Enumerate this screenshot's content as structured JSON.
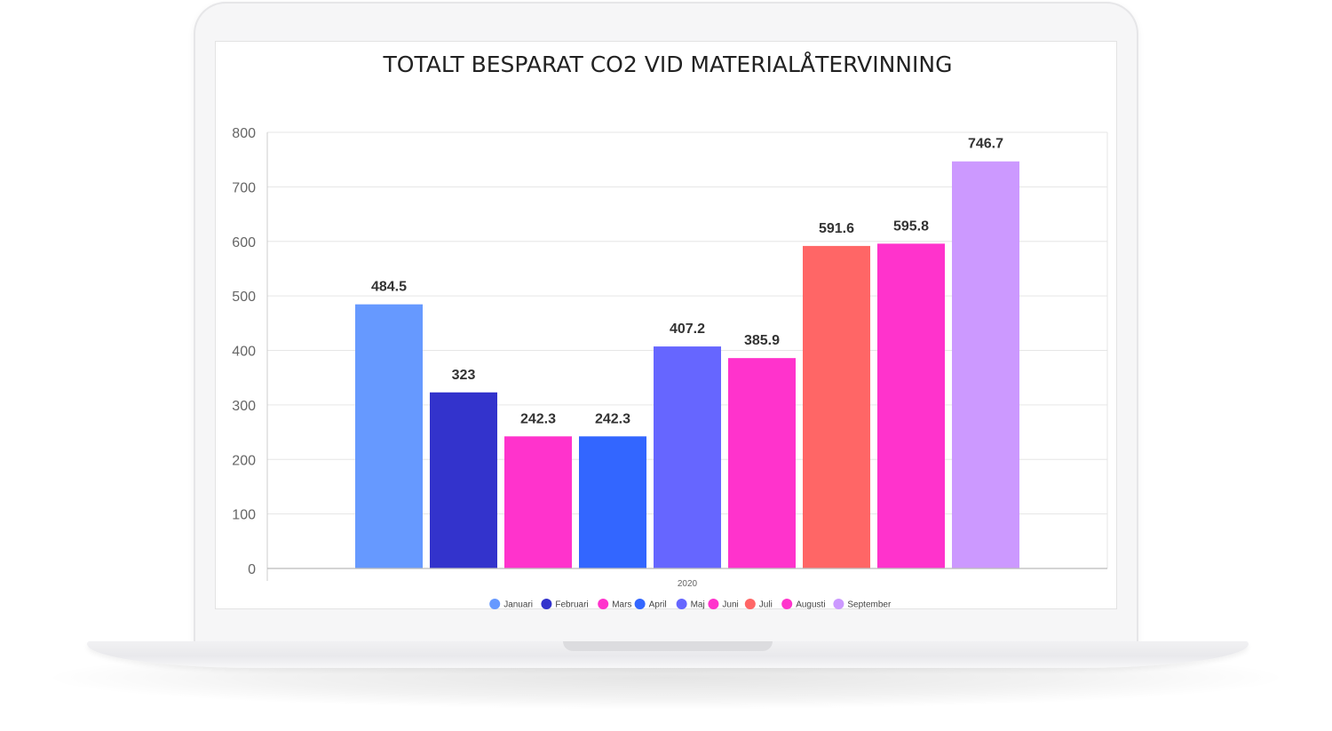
{
  "chart_data": {
    "type": "bar",
    "title": "TOTALT BESPARAT CO2 VID MATERIALÅTERVINNING",
    "categories": [
      "2020"
    ],
    "series": [
      {
        "name": "Januari",
        "value": 484.5,
        "label": "484.5",
        "color": "#6699ff"
      },
      {
        "name": "Februari",
        "value": 323,
        "label": "323",
        "color": "#3333cc"
      },
      {
        "name": "Mars",
        "value": 242.3,
        "label": "242.3",
        "color": "#ff33cc"
      },
      {
        "name": "April",
        "value": 242.3,
        "label": "242.3",
        "color": "#3366ff"
      },
      {
        "name": "Maj",
        "value": 407.2,
        "label": "407.2",
        "color": "#6666ff"
      },
      {
        "name": "Juni",
        "value": 385.9,
        "label": "385.9",
        "color": "#ff33cc"
      },
      {
        "name": "Juli",
        "value": 591.6,
        "label": "591.6",
        "color": "#ff6666"
      },
      {
        "name": "Augusti",
        "value": 595.8,
        "label": "595.8",
        "color": "#ff33cc"
      },
      {
        "name": "September",
        "value": 746.7,
        "label": "746.7",
        "color": "#cc99ff"
      }
    ],
    "yticks": [
      "0",
      "100",
      "200",
      "300",
      "400",
      "500",
      "600",
      "700",
      "800"
    ],
    "ylim": [
      0,
      800
    ],
    "xlabel": "",
    "ylabel": "",
    "grid": true,
    "legend_position": "bottom"
  }
}
